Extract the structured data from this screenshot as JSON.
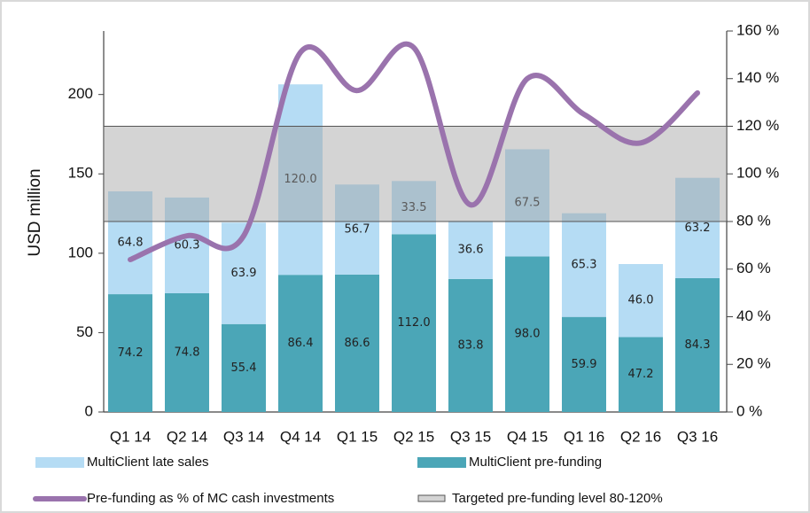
{
  "chart_data": {
    "type": "stacked-bar-line",
    "y_label": "USD million",
    "categories": [
      "Q1 14",
      "Q2 14",
      "Q3 14",
      "Q4 14",
      "Q1 15",
      "Q2 15",
      "Q3 15",
      "Q4 15",
      "Q1 16",
      "Q2 16",
      "Q3 16"
    ],
    "series": [
      {
        "name": "MultiClient pre-funding",
        "color": "#4ba6b7",
        "values": [
          74.2,
          74.8,
          55.4,
          86.4,
          86.6,
          112,
          83.8,
          98,
          59.9,
          47.2,
          84.3
        ],
        "value_labels": [
          "74.2",
          "74.8",
          "55.4",
          "86.4",
          "86.6",
          "112.0",
          "83.8",
          "98.0",
          "59.9",
          "47.2",
          "84.3"
        ]
      },
      {
        "name": "MultiClient late sales",
        "color": "#b5dcf4",
        "values": [
          64.8,
          60.3,
          63.9,
          120,
          56.7,
          33.5,
          36.6,
          67.5,
          65.3,
          46,
          63.2
        ],
        "value_labels": [
          "64.8",
          "60.3",
          "63.9",
          "120.0",
          "56.7",
          "33.5",
          "36.6",
          "67.5",
          "65.3",
          "46.0",
          "63.2"
        ]
      },
      {
        "name": "Pre-funding as % of MC cash investments",
        "color": "#9a73ad",
        "axis": "y2",
        "line": true,
        "values": [
          64,
          74,
          74,
          151,
          135,
          153,
          87,
          140,
          125,
          113,
          134
        ]
      }
    ],
    "band": {
      "name": "Targeted pre-funding level 80-120%",
      "range": [
        80,
        120
      ],
      "axis": "y2"
    },
    "ylim": [
      0,
      240
    ],
    "yticks": [
      0,
      50,
      100,
      150,
      200
    ],
    "y2lim": [
      0,
      160
    ],
    "y2ticks": [
      {
        "value": 0,
        "label": "0 %"
      },
      {
        "value": 20,
        "label": "20 %"
      },
      {
        "value": 40,
        "label": "40 %"
      },
      {
        "value": 60,
        "label": "60 %"
      },
      {
        "value": 80,
        "label": "80 %"
      },
      {
        "value": 100,
        "label": "100 %"
      },
      {
        "value": 120,
        "label": "120 %"
      },
      {
        "value": 140,
        "label": "140 %"
      },
      {
        "value": 160,
        "label": "160 %"
      }
    ]
  }
}
